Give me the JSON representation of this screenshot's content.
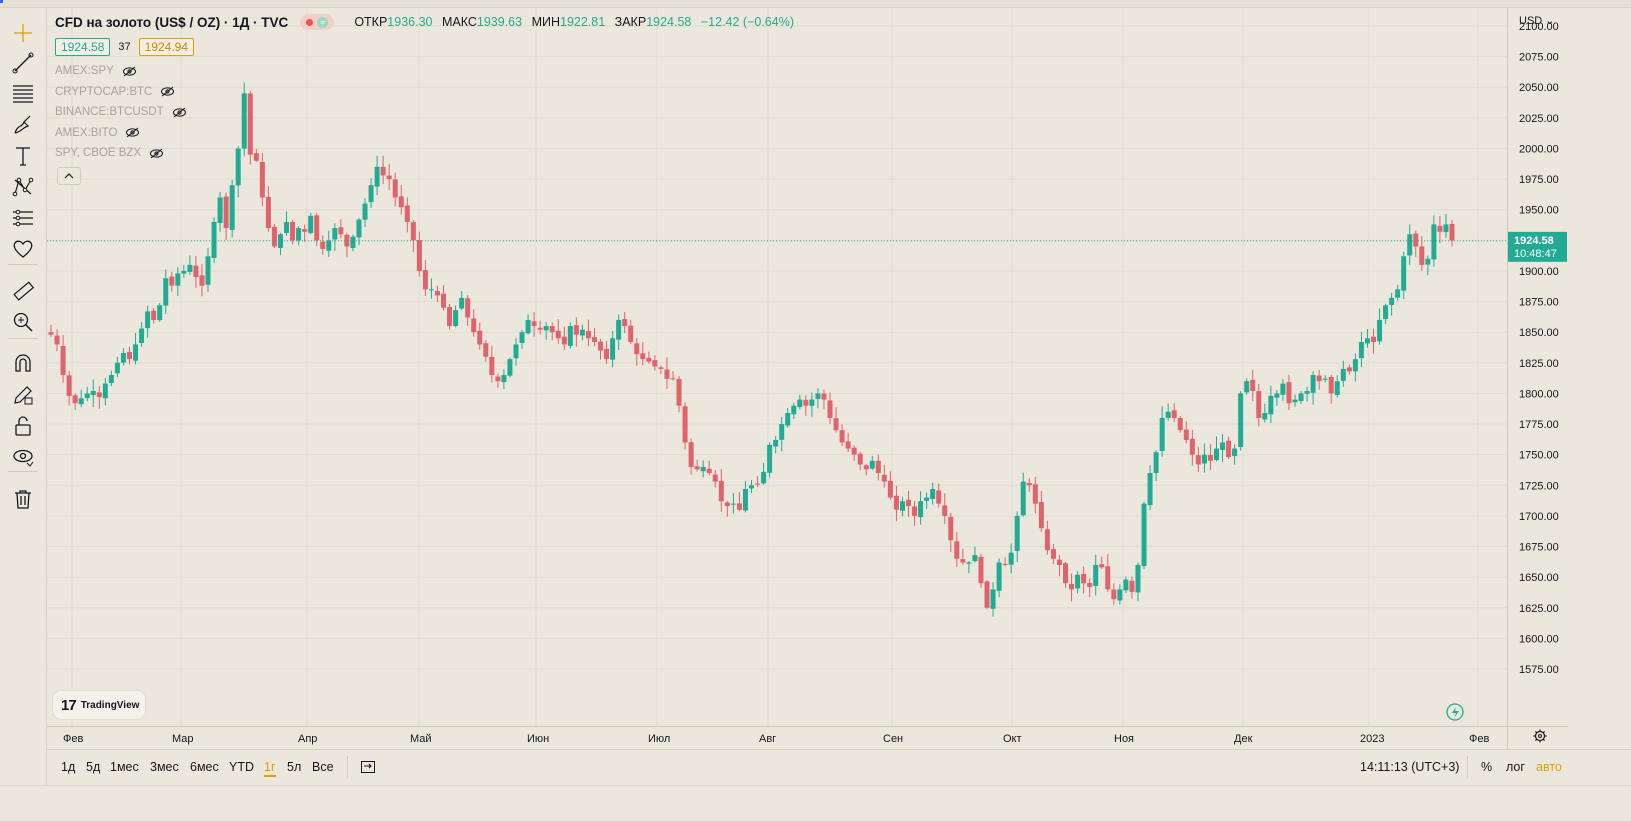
{
  "legend": {
    "title": "CFD на золото (US$ / OZ) · 1Д · TVC",
    "open_label": "ОТКР",
    "open_value": "1936.30",
    "high_label": "МАКС",
    "high_value": "1939.63",
    "low_label": "МИН",
    "low_value": "1922.81",
    "close_label": "ЗАКР",
    "close_value": "1924.58",
    "change": "−12.42 (−0.64%)",
    "bid": "1924.58",
    "spread": "37",
    "ask": "1924.94"
  },
  "indicators": [
    "AMEX:SPY",
    "CRYPTOCAP:BTC",
    "BINANCE:BTCUSDT",
    "AMEX:BITO",
    "SPY, CBOE BZX"
  ],
  "currency": "USD",
  "watermark": "TradingView",
  "bottom": {
    "ranges": [
      "1д",
      "5д",
      "1мес",
      "3мес",
      "6мес",
      "YTD",
      "1г",
      "5л",
      "Все"
    ],
    "active_range": "1г",
    "clock": "14:11:13 (UTC+3)",
    "percent": "%",
    "log": "лог",
    "auto": "авто"
  },
  "toolbar": [
    "crosshair-icon",
    "trendline-icon",
    "fib-icon",
    "brush-icon",
    "text-icon",
    "pattern-icon",
    "measure-lines-icon",
    "heart-icon",
    "ruler-icon",
    "zoom-in-icon",
    "magnet-icon",
    "pencil-lock-icon",
    "lock-icon",
    "eye-icon",
    "trash-icon"
  ],
  "chart_data": {
    "type": "candlestick",
    "y_ticks": [
      "2100.00",
      "2075.00",
      "2050.00",
      "2025.00",
      "2000.00",
      "1975.00",
      "1950.00",
      "1925.00",
      "1900.00",
      "1875.00",
      "1850.00",
      "1825.00",
      "1800.00",
      "1775.00",
      "1750.00",
      "1725.00",
      "1700.00",
      "1675.00",
      "1650.00",
      "1625.00",
      "1600.00",
      "1575.00"
    ],
    "ylim": [
      1570,
      2110
    ],
    "x_labels": [
      "Фев",
      "Мар",
      "Апр",
      "Май",
      "Июн",
      "Июл",
      "Авг",
      "Сен",
      "Окт",
      "Ноя",
      "Дек",
      "2023",
      "Фев"
    ],
    "last_price": "1924.58",
    "countdown": "10:48:47",
    "colors": {
      "up": "#22ab94",
      "down": "#e0626a",
      "up_body": "#26a69a",
      "down_body": "#ef5350"
    },
    "closes": [
      1848,
      1840,
      1815,
      1798,
      1792,
      1796,
      1800,
      1802,
      1797,
      1808,
      1815,
      1825,
      1833,
      1828,
      1840,
      1853,
      1867,
      1860,
      1872,
      1894,
      1888,
      1898,
      1900,
      1905,
      1895,
      1888,
      1912,
      1940,
      1960,
      1935,
      1970,
      2000,
      2045,
      1995,
      1990,
      1960,
      1935,
      1920,
      1930,
      1940,
      1925,
      1935,
      1932,
      1945,
      1925,
      1918,
      1925,
      1935,
      1930,
      1920,
      1928,
      1942,
      1955,
      1970,
      1985,
      1978,
      1975,
      1960,
      1952,
      1940,
      1925,
      1900,
      1885,
      1885,
      1880,
      1870,
      1855,
      1868,
      1878,
      1862,
      1850,
      1840,
      1830,
      1815,
      1810,
      1815,
      1828,
      1840,
      1850,
      1860,
      1855,
      1852,
      1855,
      1850,
      1845,
      1840,
      1855,
      1848,
      1852,
      1845,
      1842,
      1835,
      1828,
      1845,
      1860,
      1855,
      1842,
      1832,
      1828,
      1826,
      1822,
      1820,
      1812,
      1812,
      1790,
      1760,
      1740,
      1738,
      1740,
      1735,
      1728,
      1712,
      1708,
      1710,
      1705,
      1722,
      1725,
      1726,
      1736,
      1758,
      1762,
      1775,
      1784,
      1790,
      1795,
      1790,
      1795,
      1800,
      1795,
      1780,
      1770,
      1760,
      1755,
      1750,
      1742,
      1738,
      1745,
      1735,
      1728,
      1715,
      1705,
      1712,
      1708,
      1700,
      1712,
      1715,
      1722,
      1710,
      1700,
      1680,
      1665,
      1662,
      1662,
      1668,
      1645,
      1625,
      1640,
      1662,
      1660,
      1670,
      1700,
      1728,
      1725,
      1710,
      1690,
      1672,
      1665,
      1660,
      1645,
      1640,
      1652,
      1645,
      1642,
      1660,
      1658,
      1640,
      1632,
      1640,
      1648,
      1638,
      1660,
      1710,
      1735,
      1752,
      1780,
      1785,
      1780,
      1770,
      1762,
      1750,
      1742,
      1750,
      1745,
      1755,
      1760,
      1748,
      1755,
      1800,
      1810,
      1802,
      1780,
      1784,
      1798,
      1800,
      1808,
      1792,
      1795,
      1800,
      1802,
      1815,
      1810,
      1812,
      1800,
      1810,
      1820,
      1818,
      1828,
      1842,
      1845,
      1842,
      1860,
      1872,
      1878,
      1885,
      1912,
      1930,
      1920,
      1905,
      1910,
      1938,
      1932,
      1938,
      1925
    ]
  }
}
